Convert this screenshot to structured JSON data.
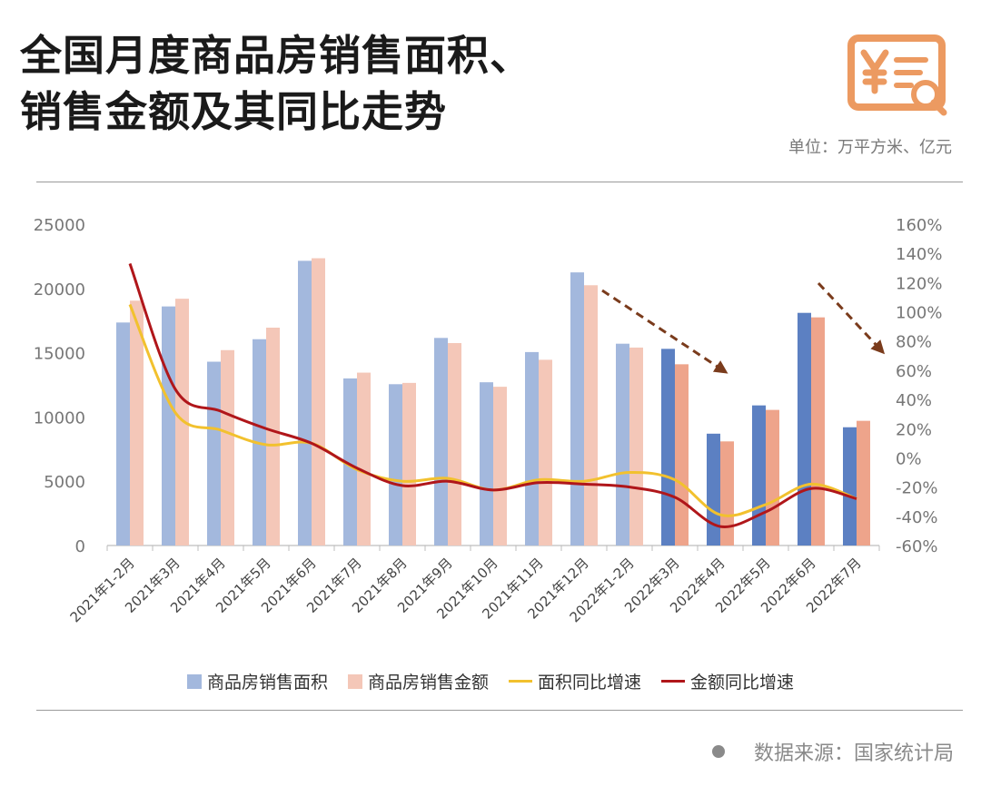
{
  "title_line1": "全国月度商品房销售面积、",
  "title_line2": "销售金额及其同比走势",
  "unit": "单位：万平方米、亿元",
  "source": "数据来源：国家统计局",
  "logo_icon": "yen-document-search-icon",
  "colors": {
    "area_bar": "#a3b8dd",
    "area_bar_2022": "#5c80c2",
    "amount_bar": "#f4c7b8",
    "amount_bar_2022": "#eea48b",
    "area_line": "#f2c12e",
    "amount_line": "#b0161a",
    "arrow": "#7a3b1c",
    "logo": "#ec9a61"
  },
  "chart_data": {
    "type": "bar",
    "categories": [
      "2021年1-2月",
      "2021年3月",
      "2021年4月",
      "2021年5月",
      "2021年6月",
      "2021年7月",
      "2021年8月",
      "2021年9月",
      "2021年10月",
      "2021年11月",
      "2021年12月",
      "2022年1-2月",
      "2022年3月",
      "2022年4月",
      "2022年5月",
      "2022年6月",
      "2022年7月"
    ],
    "series": [
      {
        "name": "商品房销售面积",
        "axis": "left",
        "kind": "bar",
        "values": [
          17350,
          18600,
          14300,
          16050,
          22150,
          13000,
          12550,
          16150,
          12700,
          15050,
          21250,
          15700,
          15300,
          8700,
          10900,
          18100,
          9200
        ]
      },
      {
        "name": "商品房销售金额",
        "axis": "left",
        "kind": "bar",
        "values": [
          19050,
          19200,
          15200,
          16950,
          22350,
          13450,
          12650,
          15750,
          12350,
          14450,
          20250,
          15400,
          14100,
          8100,
          10550,
          17750,
          9700
        ]
      },
      {
        "name": "面积同比增速",
        "axis": "right",
        "kind": "line",
        "unit": "%",
        "values": [
          105,
          31,
          19,
          9,
          10,
          -8,
          -16,
          -14,
          -22,
          -15,
          -16,
          -10,
          -15,
          -39,
          -32,
          -18,
          -28
        ]
      },
      {
        "name": "金额同比增速",
        "axis": "right",
        "kind": "line",
        "unit": "%",
        "values": [
          133,
          47,
          32,
          20,
          10,
          -7,
          -19,
          -16,
          -22,
          -17,
          -18,
          -20,
          -27,
          -47,
          -37,
          -21,
          -28
        ]
      }
    ],
    "ylim_left": [
      0,
      25000
    ],
    "yticks_left": [
      "0",
      "5000",
      "10000",
      "15000",
      "20000",
      "25000"
    ],
    "ylim_right": [
      -60,
      160
    ],
    "yticks_right": [
      "-60%",
      "-40%",
      "-20%",
      "0%",
      "20%",
      "40%",
      "60%",
      "80%",
      "100%",
      "120%",
      "140%",
      "160%"
    ],
    "grid": false,
    "legend_position": "bottom",
    "annotations": [
      "dashed downward arrow over 2021年12月–2022年4月",
      "dashed downward arrow over 2022年6月–2022年7月"
    ]
  }
}
